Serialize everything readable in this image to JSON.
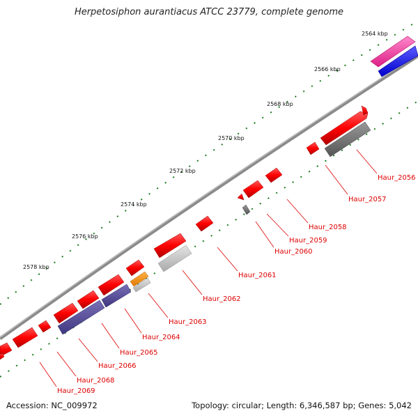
{
  "title": "Herpetosiphon aurantiacus ATCC 23779, complete genome",
  "accession": "Accession: NC_009972",
  "summary": "Topology: circular; Length: 6,346,587 bp; Genes: 5,042",
  "colors": {
    "gene_forward": "#ff0000",
    "gene_reverse": "#ff0000",
    "cds_forward": "#ee2288",
    "cds_reverse": "#1111ee",
    "backbone": "#888888",
    "ticks": "#1a7a1a",
    "label": "#dd0000"
  },
  "kbp_labels": [
    "2564 kbp",
    "2566 kbp",
    "2568 kbp",
    "2570 kbp",
    "2572 kbp",
    "2574 kbp",
    "2576 kbp",
    "2578 kbp"
  ],
  "genes": [
    {
      "id": "Haur_2056",
      "label": "Haur_2056",
      "feature": "red",
      "feature_b": "gray"
    },
    {
      "id": "Haur_2057",
      "label": "Haur_2057",
      "feature": "red",
      "feature_b": "none"
    },
    {
      "id": "Haur_2058",
      "label": "Haur_2058",
      "feature": "red",
      "feature_b": "none"
    },
    {
      "id": "Haur_2059",
      "label": "Haur_2059",
      "feature": "red",
      "feature_b": "none"
    },
    {
      "id": "Haur_2060",
      "label": "Haur_2060",
      "feature": "red",
      "feature_b": "gray"
    },
    {
      "id": "Haur_2061",
      "label": "Haur_2061",
      "feature": "red",
      "feature_b": "none"
    },
    {
      "id": "Haur_2062",
      "label": "Haur_2062",
      "feature": "red",
      "feature_b": "lightgray"
    },
    {
      "id": "Haur_2063",
      "label": "Haur_2063",
      "feature": "red",
      "feature_b": "orange"
    },
    {
      "id": "Haur_2064",
      "label": "Haur_2064",
      "feature": "red",
      "feature_b": "purple"
    },
    {
      "id": "Haur_2065",
      "label": "Haur_2065",
      "feature": "red",
      "feature_b": "none"
    },
    {
      "id": "Haur_2066",
      "label": "Haur_2066",
      "feature": "red",
      "feature_b": "purple"
    },
    {
      "id": "Haur_2068",
      "label": "Haur_2068",
      "feature": "red",
      "feature_b": "none"
    },
    {
      "id": "Haur_2069",
      "label": "Haur_2069",
      "feature": "red",
      "feature_b": "none"
    }
  ]
}
